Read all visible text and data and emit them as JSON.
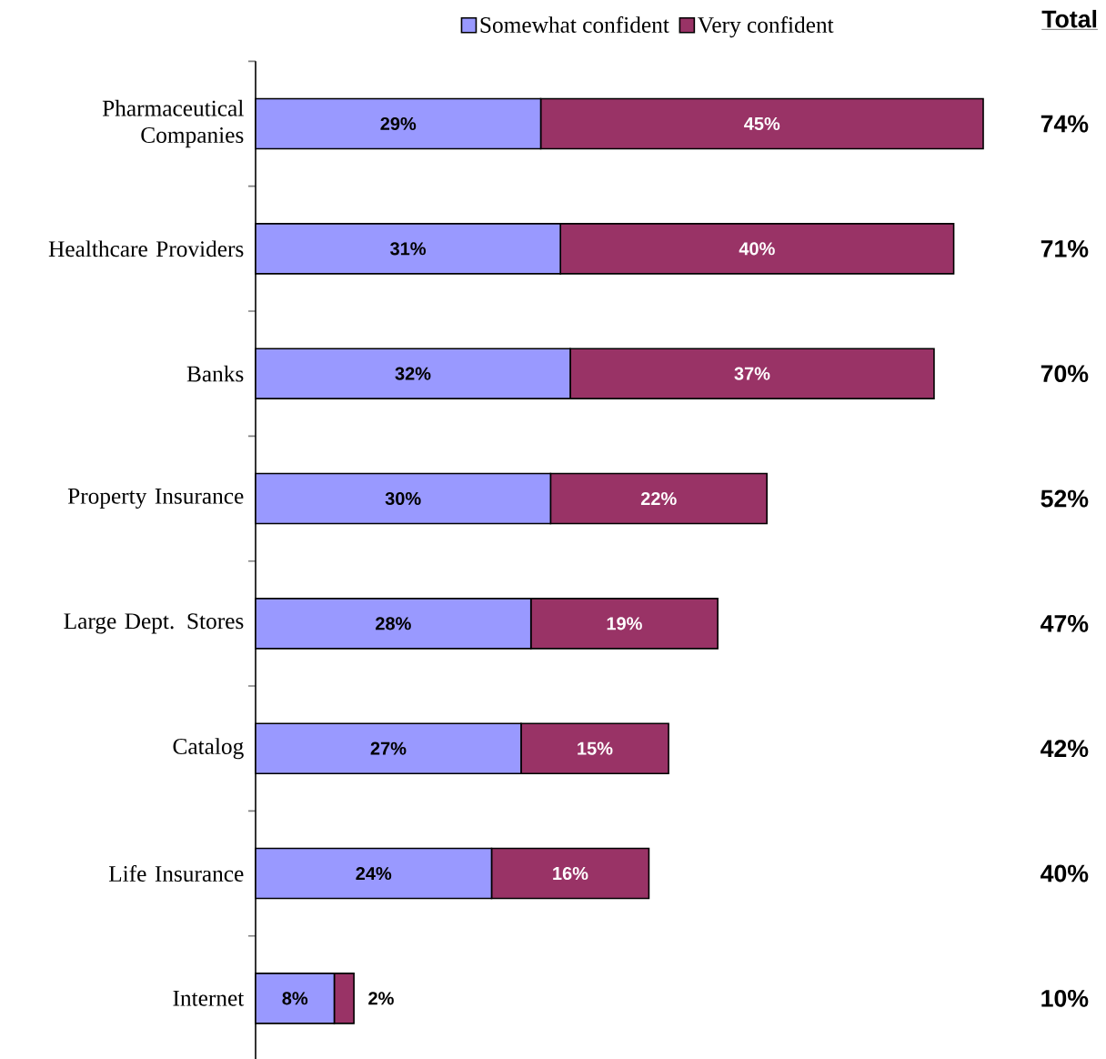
{
  "chart_data": {
    "type": "bar",
    "orientation": "horizontal",
    "stacked": true,
    "legend": "top",
    "categories": [
      "Pharmaceutical Companies",
      "Healthcare Providers",
      "Banks",
      "Property Insurance",
      "Large Dept. Stores",
      "Catalog",
      "Life Insurance",
      "Internet"
    ],
    "series": [
      {
        "name": "Somewhat confident",
        "color": "#9999ff",
        "values": [
          29,
          31,
          32,
          30,
          28,
          27,
          24,
          8
        ],
        "value_labels": [
          "29%",
          "31%",
          "32%",
          "30%",
          "28%",
          "27%",
          "24%",
          "8%"
        ]
      },
      {
        "name": "Very confident",
        "color": "#993366",
        "values": [
          45,
          40,
          37,
          22,
          19,
          15,
          16,
          2
        ],
        "value_labels": [
          "45%",
          "40%",
          "37%",
          "22%",
          "19%",
          "15%",
          "16%",
          "2%"
        ]
      }
    ],
    "annotations": [
      "Total",
      "74%",
      "71%",
      "70%",
      "52%",
      "47%",
      "42%",
      "40%",
      "10%"
    ]
  }
}
